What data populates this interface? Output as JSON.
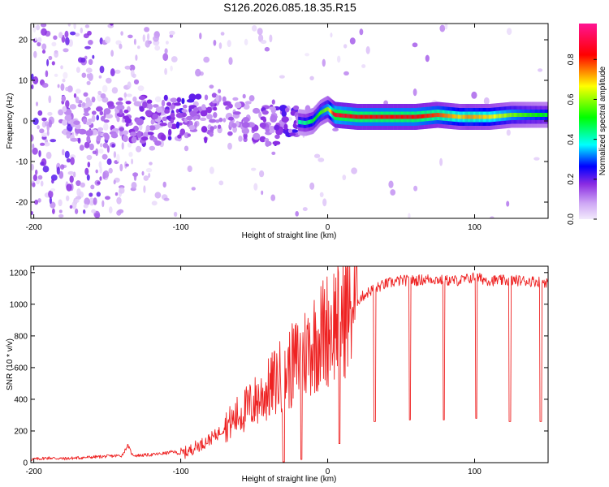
{
  "chart_data": [
    {
      "type": "heatmap",
      "title": "S126.2026.085.18.35.R15",
      "xlabel": "Height of straight line (km)",
      "ylabel": "Frequency (Hz)",
      "xlim": [
        -202,
        150
      ],
      "ylim": [
        -24,
        24
      ],
      "xticks": [
        "-200",
        "-100",
        "0",
        "100"
      ],
      "xtick_values": [
        -200,
        -100,
        0,
        100
      ],
      "yticks": [
        "-20",
        "-10",
        "0",
        "10",
        "20"
      ],
      "ytick_values": [
        -20,
        -10,
        0,
        10,
        20
      ],
      "colorbar": {
        "label": "Normalized spectral amplitude",
        "ticks": [
          "0.0",
          "0.2",
          "0.4",
          "0.6",
          "0.8"
        ],
        "tick_values": [
          0.0,
          0.2,
          0.4,
          0.6,
          0.8
        ],
        "range": [
          0,
          0.98
        ],
        "colormap": [
          "#e6d6fa",
          "#8a2be2",
          "#0000ff",
          "#00ffff",
          "#00ff00",
          "#ffff00",
          "#ff0000",
          "#ff1493"
        ]
      },
      "ridge": {
        "x": [
          -175,
          -160,
          -145,
          -130,
          -115,
          -100,
          -85,
          -70,
          -55,
          -40,
          -25,
          -15,
          -10,
          -5,
          0,
          5,
          20,
          40,
          60,
          75,
          90,
          95,
          110,
          125,
          135,
          150
        ],
        "freq": [
          0.5,
          0,
          0,
          0,
          0,
          1,
          0,
          0.5,
          0,
          0,
          0,
          -0.5,
          0,
          2,
          3,
          1.5,
          1,
          1,
          1,
          1.5,
          1,
          1,
          1,
          1.5,
          1.5,
          1.5
        ],
        "amplitude": [
          0.2,
          0.25,
          0.3,
          0.35,
          0.35,
          0.4,
          0.35,
          0.3,
          0.3,
          0.35,
          0.4,
          0.45,
          0.5,
          0.55,
          0.6,
          0.9,
          0.85,
          0.85,
          0.85,
          0.8,
          0.7,
          0.75,
          0.7,
          0.6,
          0.55,
          0.5
        ]
      }
    },
    {
      "type": "line",
      "title": "",
      "xlabel": "Height of straight line (km)",
      "ylabel": "SNR (10 * v/v)",
      "xlim": [
        -202,
        150
      ],
      "ylim": [
        0,
        1240
      ],
      "xticks": [
        "-200",
        "-100",
        "0",
        "100"
      ],
      "xtick_values": [
        -200,
        -100,
        0,
        100
      ],
      "yticks": [
        "0",
        "200",
        "400",
        "600",
        "800",
        "1000",
        "1200"
      ],
      "ytick_values": [
        0,
        200,
        400,
        600,
        800,
        1000,
        1200
      ],
      "series": [
        {
          "name": "SNR",
          "color": "#ee2222",
          "x": [
            -202,
            -190,
            -180,
            -170,
            -160,
            -150,
            -140,
            -136,
            -133,
            -130,
            -120,
            -110,
            -105,
            -100,
            -95,
            -90,
            -85,
            -80,
            -75,
            -70,
            -65,
            -60,
            -55,
            -50,
            -45,
            -40,
            -35,
            -30,
            -25,
            -20,
            -15,
            -10,
            -5,
            0,
            5,
            10,
            15,
            20,
            25,
            30,
            35,
            40,
            50,
            60,
            70,
            80,
            90,
            100,
            110,
            120,
            130,
            140,
            150
          ],
          "y": [
            20,
            30,
            25,
            30,
            35,
            40,
            45,
            110,
            50,
            45,
            50,
            60,
            70,
            55,
            70,
            100,
            120,
            150,
            180,
            230,
            260,
            310,
            340,
            380,
            420,
            460,
            520,
            560,
            600,
            650,
            700,
            760,
            800,
            850,
            900,
            940,
            980,
            1020,
            1060,
            1090,
            1110,
            1130,
            1150,
            1150,
            1160,
            1150,
            1150,
            1170,
            1150,
            1150,
            1150,
            1145,
            1140
          ],
          "dips": [
            {
              "x": -30,
              "y": 5
            },
            {
              "x": -18,
              "y": 20
            },
            {
              "x": 8,
              "y": 120
            },
            {
              "x": 32,
              "y": 260
            },
            {
              "x": 56,
              "y": 270
            },
            {
              "x": 79,
              "y": 270
            },
            {
              "x": 101,
              "y": 280
            },
            {
              "x": 124,
              "y": 260
            },
            {
              "x": 145,
              "y": 260
            }
          ]
        }
      ]
    }
  ]
}
